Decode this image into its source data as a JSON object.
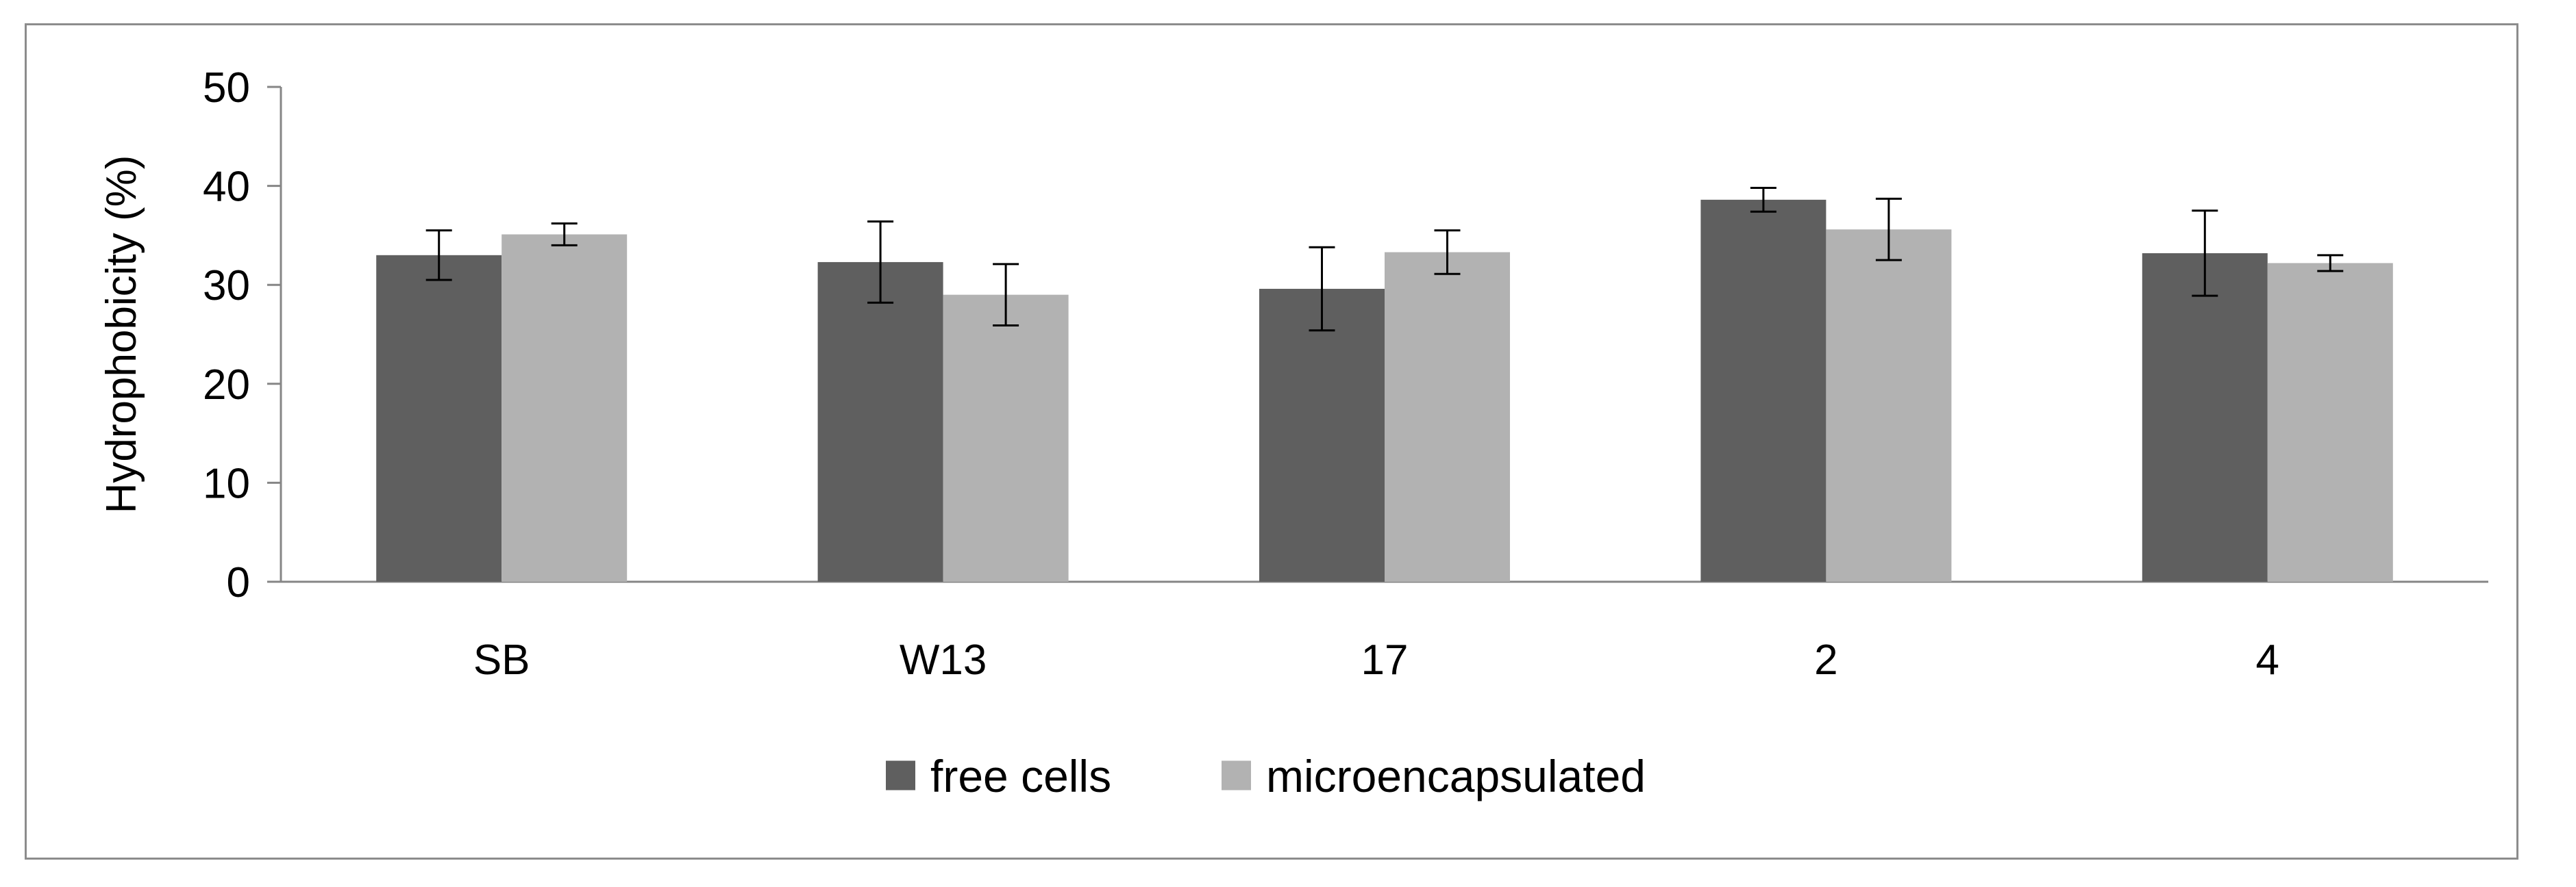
{
  "chart_data": {
    "type": "bar",
    "title": "",
    "xlabel": "",
    "ylabel": "Hydrophobicity (%)",
    "ylim": [
      0,
      50
    ],
    "yticks": [
      "0",
      "10",
      "20",
      "30",
      "40",
      "50"
    ],
    "grid": false,
    "legend_position": "bottom",
    "categories": [
      "SB",
      "W13",
      "17",
      "2",
      "4"
    ],
    "series": [
      {
        "name": "free cells",
        "color": "#5f5f5f",
        "values": [
          33.0,
          32.3,
          29.6,
          38.6,
          33.2
        ],
        "errors": [
          2.5,
          4.1,
          4.2,
          1.2,
          4.3
        ]
      },
      {
        "name": "microencapsulated",
        "color": "#b2b2b2",
        "values": [
          35.1,
          29.0,
          33.3,
          35.6,
          32.2
        ],
        "errors": [
          1.1,
          3.1,
          2.2,
          3.1,
          0.8
        ]
      }
    ]
  }
}
